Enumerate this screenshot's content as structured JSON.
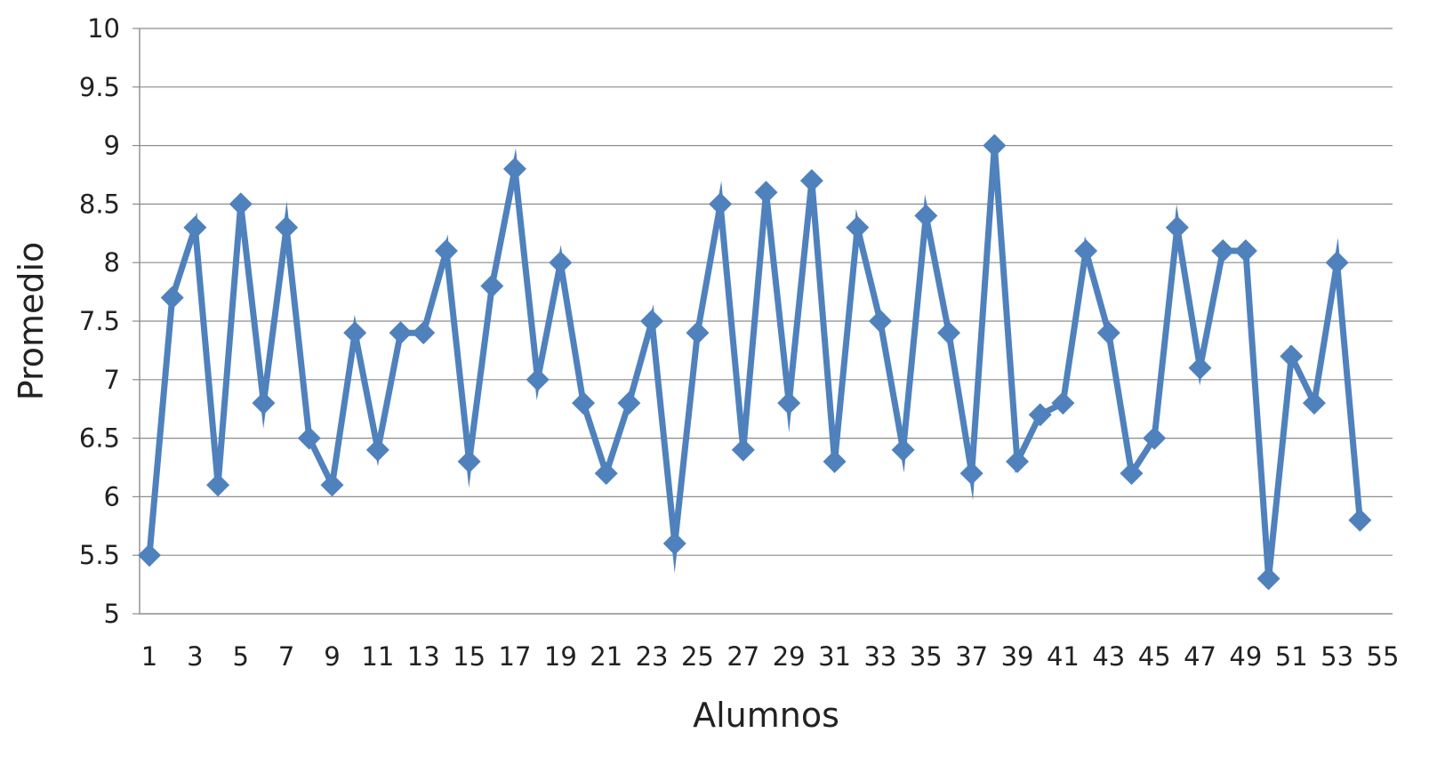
{
  "chart_data": {
    "type": "line",
    "title": "",
    "xlabel": "Alumnos",
    "ylabel": "Promedio",
    "xlim": [
      1,
      55
    ],
    "ylim": [
      5,
      10
    ],
    "x_ticks": [
      1,
      3,
      5,
      7,
      9,
      11,
      13,
      15,
      17,
      19,
      21,
      23,
      25,
      27,
      29,
      31,
      33,
      35,
      37,
      39,
      41,
      43,
      45,
      47,
      49,
      51,
      53,
      55
    ],
    "y_ticks": [
      5,
      5.5,
      6,
      6.5,
      7,
      7.5,
      8,
      8.5,
      9,
      9.5,
      10
    ],
    "grid": "horizontal",
    "legend": "none",
    "series": [
      {
        "color": "#4f81bd",
        "marker": "diamond",
        "x": [
          1,
          2,
          3,
          4,
          5,
          6,
          7,
          8,
          9,
          10,
          11,
          12,
          13,
          14,
          15,
          16,
          17,
          18,
          19,
          20,
          21,
          22,
          23,
          24,
          25,
          26,
          27,
          28,
          29,
          30,
          31,
          32,
          33,
          34,
          35,
          36,
          37,
          38,
          39,
          40,
          41,
          42,
          43,
          44,
          45,
          46,
          47,
          48,
          49,
          50,
          51,
          52,
          53,
          54
        ],
        "values": [
          5.5,
          7.7,
          8.3,
          6.1,
          8.5,
          6.8,
          8.3,
          6.5,
          6.1,
          7.4,
          6.4,
          7.4,
          7.4,
          8.1,
          6.3,
          7.8,
          8.8,
          7.0,
          8.0,
          6.8,
          6.2,
          6.8,
          7.5,
          5.6,
          7.4,
          8.5,
          6.4,
          8.6,
          6.8,
          8.7,
          6.3,
          8.3,
          7.5,
          6.4,
          8.4,
          7.4,
          6.2,
          9.0,
          6.3,
          6.7,
          6.8,
          8.1,
          7.4,
          6.2,
          6.5,
          8.3,
          7.1,
          8.1,
          8.1,
          5.3,
          7.2,
          6.8,
          8.0,
          5.8
        ]
      }
    ]
  }
}
